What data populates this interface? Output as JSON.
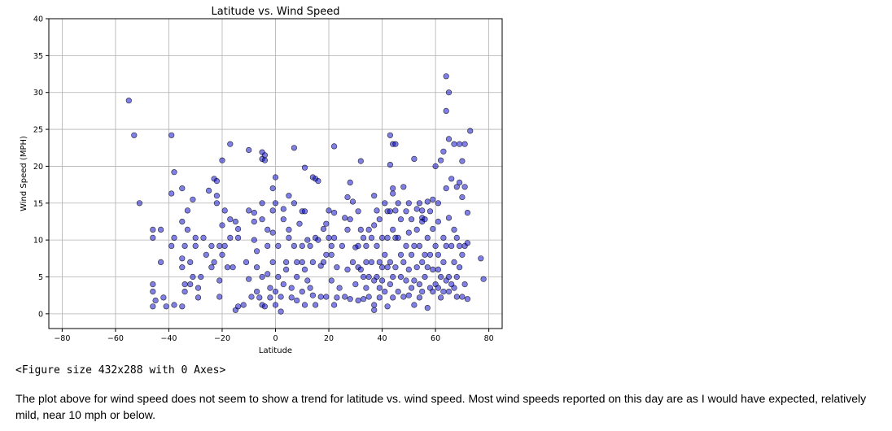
{
  "chart_data": {
    "type": "scatter",
    "title": "Latitude vs. Wind Speed",
    "xlabel": "Latitude",
    "ylabel": "Wind Speed (MPH)",
    "xlim": [
      -85,
      85
    ],
    "ylim": [
      -2,
      40
    ],
    "xticks": [
      -80,
      -60,
      -40,
      -20,
      0,
      20,
      40,
      60,
      80
    ],
    "yticks": [
      0,
      5,
      10,
      15,
      20,
      25,
      30,
      35,
      40
    ],
    "grid": true,
    "marker_color": "#0000cc",
    "marker_edge_color": "#000000",
    "points": [
      [
        -55,
        28.9
      ],
      [
        -53,
        24.2
      ],
      [
        -51,
        15.0
      ],
      [
        -46,
        11.4
      ],
      [
        -46,
        10.3
      ],
      [
        -46,
        4.0
      ],
      [
        -46,
        3.0
      ],
      [
        -45,
        1.8
      ],
      [
        -46,
        1.0
      ],
      [
        -43,
        11.4
      ],
      [
        -43,
        7.0
      ],
      [
        -42,
        2.2
      ],
      [
        -41,
        1.0
      ],
      [
        -39,
        24.2
      ],
      [
        -38,
        19.2
      ],
      [
        -39,
        16.3
      ],
      [
        -39,
        9.2
      ],
      [
        -38,
        10.3
      ],
      [
        -38,
        1.2
      ],
      [
        -35,
        17.0
      ],
      [
        -35,
        12.5
      ],
      [
        -35,
        7.5
      ],
      [
        -34,
        9.2
      ],
      [
        -35,
        6.3
      ],
      [
        -34,
        4.0
      ],
      [
        -34,
        3.0
      ],
      [
        -35,
        1.0
      ],
      [
        -33,
        14.0
      ],
      [
        -33,
        11.4
      ],
      [
        -32,
        7.0
      ],
      [
        -32,
        4.0
      ],
      [
        -31,
        15.5
      ],
      [
        -31,
        5.0
      ],
      [
        -30,
        10.3
      ],
      [
        -30,
        9.2
      ],
      [
        -29,
        3.5
      ],
      [
        -29,
        2.2
      ],
      [
        -28,
        5.0
      ],
      [
        -27,
        10.3
      ],
      [
        -26,
        8.0
      ],
      [
        -25,
        16.7
      ],
      [
        -24,
        9.2
      ],
      [
        -24,
        6.3
      ],
      [
        -23,
        18.3
      ],
      [
        -23,
        7.0
      ],
      [
        -22,
        18.0
      ],
      [
        -22,
        16.0
      ],
      [
        -22,
        15.0
      ],
      [
        -21,
        9.2
      ],
      [
        -21,
        2.3
      ],
      [
        -21,
        4.5
      ],
      [
        -20,
        20.8
      ],
      [
        -20,
        12.0
      ],
      [
        -20,
        8.0
      ],
      [
        -19,
        14.0
      ],
      [
        -19,
        9.2
      ],
      [
        -18,
        6.3
      ],
      [
        -17,
        23.0
      ],
      [
        -17,
        12.8
      ],
      [
        -17,
        10.3
      ],
      [
        -16,
        6.3
      ],
      [
        -15,
        12.5
      ],
      [
        -14,
        11.5
      ],
      [
        -14,
        10.3
      ],
      [
        -15,
        0.5
      ],
      [
        -14,
        1.0
      ],
      [
        -12,
        1.2
      ],
      [
        -11,
        7.0
      ],
      [
        -10,
        22.2
      ],
      [
        -10,
        14.0
      ],
      [
        -10,
        4.7
      ],
      [
        -9,
        2.3
      ],
      [
        -8,
        13.7
      ],
      [
        -8,
        12.5
      ],
      [
        -8,
        10.0
      ],
      [
        -7,
        8.5
      ],
      [
        -7,
        6.3
      ],
      [
        -7,
        3.0
      ],
      [
        -6,
        2.2
      ],
      [
        -5,
        21.9
      ],
      [
        -5,
        21.0
      ],
      [
        -5,
        15.0
      ],
      [
        -5,
        12.8
      ],
      [
        -5,
        5.0
      ],
      [
        -5,
        1.2
      ],
      [
        -4,
        1.0
      ],
      [
        -4,
        21.5
      ],
      [
        -4,
        20.8
      ],
      [
        -3,
        11.4
      ],
      [
        -3,
        9.2
      ],
      [
        -3,
        5.4
      ],
      [
        -2,
        3.5
      ],
      [
        -2,
        2.2
      ],
      [
        -1,
        17.0
      ],
      [
        -1,
        14.0
      ],
      [
        -1,
        11.0
      ],
      [
        -1,
        7.0
      ],
      [
        0,
        18.5
      ],
      [
        0,
        15.0
      ],
      [
        0,
        3.0
      ],
      [
        0,
        1.2
      ],
      [
        1,
        9.2
      ],
      [
        1,
        5.0
      ],
      [
        2,
        2.3
      ],
      [
        2,
        0.3
      ],
      [
        3,
        14.2
      ],
      [
        3,
        12.8
      ],
      [
        3,
        4.0
      ],
      [
        4,
        7.0
      ],
      [
        4,
        6.0
      ],
      [
        5,
        16.0
      ],
      [
        5,
        11.4
      ],
      [
        5,
        10.3
      ],
      [
        6,
        3.5
      ],
      [
        6,
        2.2
      ],
      [
        7,
        22.5
      ],
      [
        7,
        15.0
      ],
      [
        7,
        9.2
      ],
      [
        8,
        7.0
      ],
      [
        8,
        5.0
      ],
      [
        8,
        1.8
      ],
      [
        9,
        12.2
      ],
      [
        10,
        13.9
      ],
      [
        10,
        9.2
      ],
      [
        10,
        7.0
      ],
      [
        10,
        3.0
      ],
      [
        11,
        19.8
      ],
      [
        11,
        13.9
      ],
      [
        11,
        6.0
      ],
      [
        11,
        1.2
      ],
      [
        12,
        10.0
      ],
      [
        12,
        4.5
      ],
      [
        13,
        9.2
      ],
      [
        13,
        3.5
      ],
      [
        14,
        18.5
      ],
      [
        14,
        7.0
      ],
      [
        14,
        2.5
      ],
      [
        15,
        18.3
      ],
      [
        15,
        10.3
      ],
      [
        15,
        1.2
      ],
      [
        16,
        18.0
      ],
      [
        16,
        10.0
      ],
      [
        17,
        6.5
      ],
      [
        17,
        2.3
      ],
      [
        18,
        11.5
      ],
      [
        18,
        7.0
      ],
      [
        19,
        12.2
      ],
      [
        19,
        8.0
      ],
      [
        19,
        2.3
      ],
      [
        20,
        14.0
      ],
      [
        20,
        10.3
      ],
      [
        21,
        9.2
      ],
      [
        21,
        8.0
      ],
      [
        21,
        4.5
      ],
      [
        22,
        22.7
      ],
      [
        22,
        13.7
      ],
      [
        22,
        10.3
      ],
      [
        22,
        1.2
      ],
      [
        23,
        6.3
      ],
      [
        23,
        2.2
      ],
      [
        24,
        3.5
      ],
      [
        25,
        9.2
      ],
      [
        26,
        13.0
      ],
      [
        26,
        2.3
      ],
      [
        27,
        15.8
      ],
      [
        27,
        11.4
      ],
      [
        27,
        6.0
      ],
      [
        28,
        17.8
      ],
      [
        28,
        12.8
      ],
      [
        28,
        2.0
      ],
      [
        29,
        15.2
      ],
      [
        29,
        7.0
      ],
      [
        30,
        9.0
      ],
      [
        30,
        4.0
      ],
      [
        31,
        13.9
      ],
      [
        31,
        9.2
      ],
      [
        31,
        6.3
      ],
      [
        31,
        1.8
      ],
      [
        32,
        20.7
      ],
      [
        32,
        11.4
      ],
      [
        32,
        6.0
      ],
      [
        33,
        10.3
      ],
      [
        33,
        5.0
      ],
      [
        33,
        2.0
      ],
      [
        34,
        9.2
      ],
      [
        34,
        7.0
      ],
      [
        34,
        3.5
      ],
      [
        35,
        11.4
      ],
      [
        35,
        5.0
      ],
      [
        35,
        2.3
      ],
      [
        36,
        10.3
      ],
      [
        36,
        7.0
      ],
      [
        37,
        16.0
      ],
      [
        37,
        12.0
      ],
      [
        37,
        4.5
      ],
      [
        37,
        1.2
      ],
      [
        37,
        0.5
      ],
      [
        38,
        14.0
      ],
      [
        38,
        9.2
      ],
      [
        38,
        5.0
      ],
      [
        39,
        12.8
      ],
      [
        39,
        7.0
      ],
      [
        39,
        3.5
      ],
      [
        39,
        2.2
      ],
      [
        40,
        10.3
      ],
      [
        40,
        6.3
      ],
      [
        40,
        4.5
      ],
      [
        41,
        15.0
      ],
      [
        41,
        8.0
      ],
      [
        41,
        3.0
      ],
      [
        42,
        13.9
      ],
      [
        42,
        10.3
      ],
      [
        42,
        6.3
      ],
      [
        42,
        1.0
      ],
      [
        43,
        24.2
      ],
      [
        43,
        20.2
      ],
      [
        43,
        13.9
      ],
      [
        43,
        7.0
      ],
      [
        43,
        4.0
      ],
      [
        44,
        23.0
      ],
      [
        44,
        17.0
      ],
      [
        44,
        16.3
      ],
      [
        44,
        11.4
      ],
      [
        44,
        5.0
      ],
      [
        44,
        2.2
      ],
      [
        45,
        23.0
      ],
      [
        45,
        14.0
      ],
      [
        45,
        10.3
      ],
      [
        45,
        6.3
      ],
      [
        46,
        15.0
      ],
      [
        46,
        10.3
      ],
      [
        46,
        3.0
      ],
      [
        47,
        12.8
      ],
      [
        47,
        8.0
      ],
      [
        47,
        5.0
      ],
      [
        48,
        17.2
      ],
      [
        48,
        7.0
      ],
      [
        48,
        2.3
      ],
      [
        49,
        13.9
      ],
      [
        49,
        9.2
      ],
      [
        49,
        4.5
      ],
      [
        50,
        15.0
      ],
      [
        50,
        11.0
      ],
      [
        50,
        6.0
      ],
      [
        50,
        2.5
      ],
      [
        51,
        12.8
      ],
      [
        51,
        8.0
      ],
      [
        51,
        3.5
      ],
      [
        52,
        21.0
      ],
      [
        52,
        9.2
      ],
      [
        52,
        4.5
      ],
      [
        52,
        1.2
      ],
      [
        53,
        14.2
      ],
      [
        53,
        11.4
      ],
      [
        53,
        6.3
      ],
      [
        54,
        15.0
      ],
      [
        54,
        9.2
      ],
      [
        54,
        4.0
      ],
      [
        54,
        2.2
      ],
      [
        55,
        14.0
      ],
      [
        55,
        13.0
      ],
      [
        55,
        12.5
      ],
      [
        55,
        7.0
      ],
      [
        55,
        3.0
      ],
      [
        56,
        12.8
      ],
      [
        56,
        8.0
      ],
      [
        56,
        5.0
      ],
      [
        57,
        15.2
      ],
      [
        57,
        10.3
      ],
      [
        57,
        6.3
      ],
      [
        57,
        0.8
      ],
      [
        58,
        13.9
      ],
      [
        58,
        8.0
      ],
      [
        58,
        3.5
      ],
      [
        59,
        15.5
      ],
      [
        59,
        11.5
      ],
      [
        59,
        6.0
      ],
      [
        59,
        3.0
      ],
      [
        60,
        20.0
      ],
      [
        60,
        9.2
      ],
      [
        60,
        4.0
      ],
      [
        61,
        15.0
      ],
      [
        61,
        12.5
      ],
      [
        61,
        8.0
      ],
      [
        61,
        6.0
      ],
      [
        61,
        3.5
      ],
      [
        62,
        20.8
      ],
      [
        62,
        5.0
      ],
      [
        62,
        2.2
      ],
      [
        63,
        22.0
      ],
      [
        63,
        10.3
      ],
      [
        63,
        7.0
      ],
      [
        63,
        3.0
      ],
      [
        64,
        32.2
      ],
      [
        64,
        27.5
      ],
      [
        64,
        17.0
      ],
      [
        64,
        9.2
      ],
      [
        64,
        4.5
      ],
      [
        65,
        30.0
      ],
      [
        65,
        23.7
      ],
      [
        65,
        13.0
      ],
      [
        65,
        5.0
      ],
      [
        65,
        3.0
      ],
      [
        66,
        18.3
      ],
      [
        66,
        9.2
      ],
      [
        66,
        4.0
      ],
      [
        67,
        23.0
      ],
      [
        67,
        11.4
      ],
      [
        67,
        7.0
      ],
      [
        67,
        3.5
      ],
      [
        68,
        17.2
      ],
      [
        68,
        10.3
      ],
      [
        68,
        5.0
      ],
      [
        68,
        2.3
      ],
      [
        69,
        23.0
      ],
      [
        69,
        17.8
      ],
      [
        69,
        9.2
      ],
      [
        69,
        6.3
      ],
      [
        70,
        20.7
      ],
      [
        70,
        15.8
      ],
      [
        70,
        8.0
      ],
      [
        70,
        2.3
      ],
      [
        71,
        23.0
      ],
      [
        71,
        17.2
      ],
      [
        71,
        9.2
      ],
      [
        71,
        4.0
      ],
      [
        72,
        13.7
      ],
      [
        72,
        9.6
      ],
      [
        72,
        2.0
      ],
      [
        73,
        24.8
      ],
      [
        77,
        7.5
      ],
      [
        78,
        4.7
      ]
    ]
  },
  "output_text": "<Figure size 432x288 with 0 Axes>",
  "markdown_text": "The plot above for wind speed does not seem to show a trend for latitude vs. wind speed. Most wind speeds reported on this day are as I would have expected, relatively mild, near 10 mph or below."
}
